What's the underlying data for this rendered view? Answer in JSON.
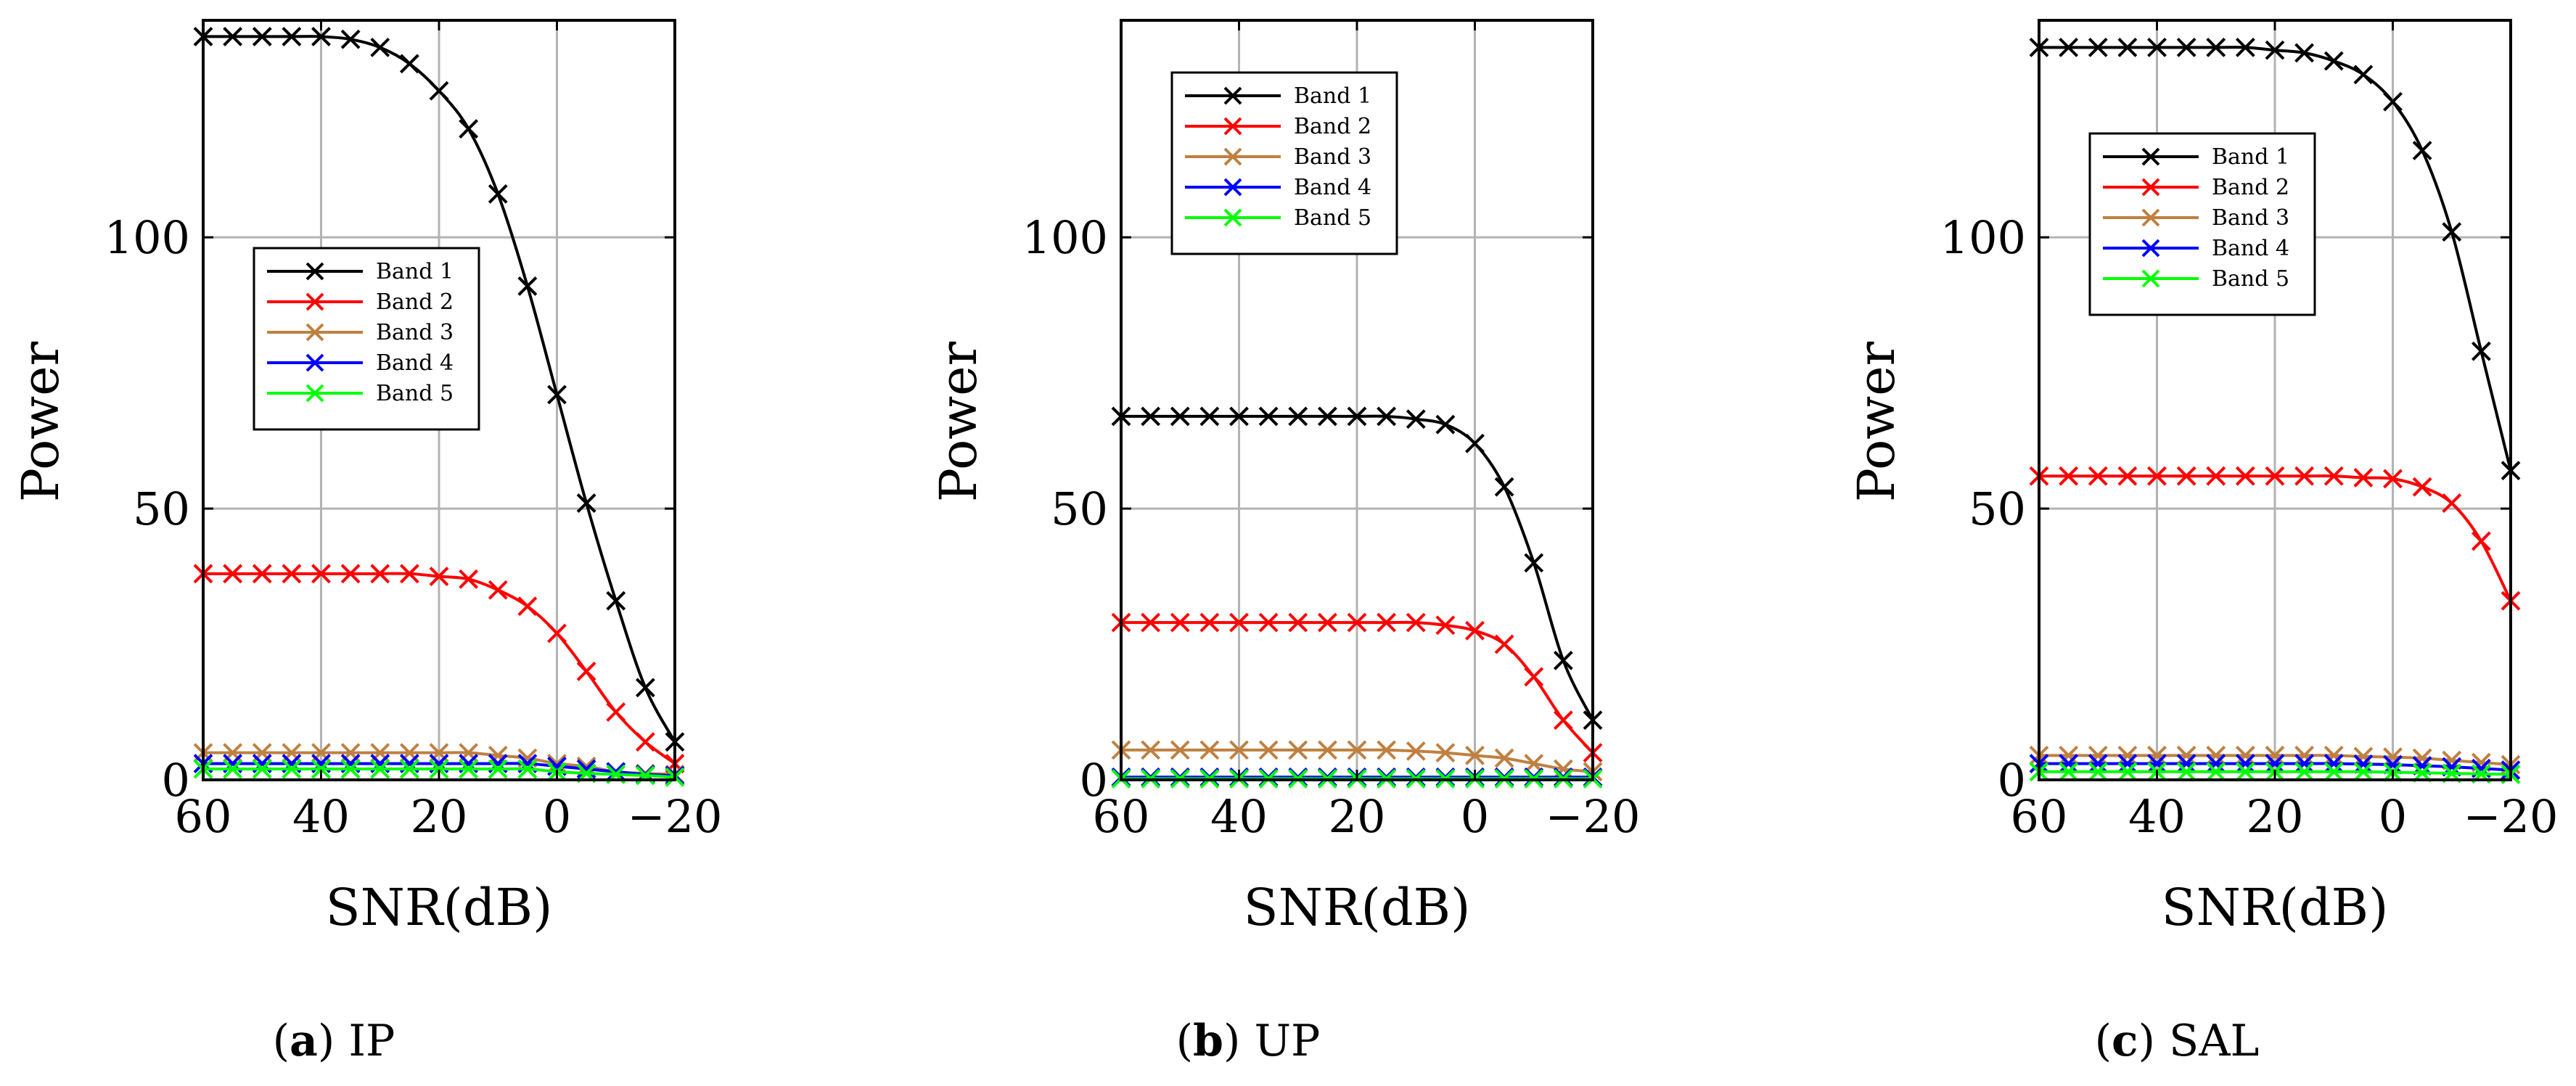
{
  "colors": {
    "band1": "#000000",
    "band2": "#ff0000",
    "band3": "#bf8040",
    "band4": "#0000ff",
    "band5": "#00ff00",
    "grid": "#b3b3b3"
  },
  "captions": [
    {
      "letter": "(a)",
      "text": "IP"
    },
    {
      "letter": "(b)",
      "text": "UP"
    },
    {
      "letter": "(c)",
      "text": "SAL"
    }
  ],
  "chart_data": [
    {
      "type": "line",
      "title": "",
      "xlabel": "SNR(dB)",
      "ylabel": "Power",
      "xlim": [
        60,
        -20
      ],
      "ylim": [
        0,
        140
      ],
      "xticks": [
        "60",
        "40",
        "20",
        "0",
        "−20"
      ],
      "yticks": [
        "0",
        "50",
        "100"
      ],
      "grid": true,
      "legend_position": "center-left",
      "x": [
        60,
        55,
        50,
        45,
        40,
        35,
        30,
        25,
        20,
        15,
        10,
        5,
        0,
        -5,
        -10,
        -15,
        -20
      ],
      "series": [
        {
          "name": "Band 1",
          "values": [
            137,
            137,
            137,
            137,
            137,
            136.5,
            135,
            132,
            127,
            120,
            108,
            91,
            71,
            51,
            33,
            17,
            7
          ]
        },
        {
          "name": "Band 2",
          "values": [
            38,
            38,
            38,
            38,
            38,
            38,
            38,
            38,
            37.5,
            37,
            35,
            32,
            27,
            20,
            12.5,
            7,
            3
          ]
        },
        {
          "name": "Band 3",
          "values": [
            5,
            5,
            5,
            5,
            5,
            5,
            5,
            5,
            5,
            5,
            4.5,
            4,
            3,
            2.5,
            1.5,
            1.2,
            1
          ]
        },
        {
          "name": "Band 4",
          "values": [
            3,
            3,
            3,
            3,
            3,
            3,
            3,
            3,
            3,
            3,
            3,
            3,
            2.5,
            2,
            1.5,
            1,
            0.8
          ]
        },
        {
          "name": "Band 5",
          "values": [
            2,
            2,
            2,
            2,
            2,
            2,
            2,
            2,
            2,
            2,
            2,
            2,
            1.5,
            1.2,
            1,
            0.8,
            0.5
          ]
        }
      ]
    },
    {
      "type": "line",
      "title": "",
      "xlabel": "SNR(dB)",
      "ylabel": "Power",
      "xlim": [
        60,
        -20
      ],
      "ylim": [
        0,
        140
      ],
      "xticks": [
        "60",
        "40",
        "20",
        "0",
        "−20"
      ],
      "yticks": [
        "0",
        "50",
        "100"
      ],
      "grid": true,
      "legend_position": "top-left",
      "x": [
        60,
        55,
        50,
        45,
        40,
        35,
        30,
        25,
        20,
        15,
        10,
        5,
        0,
        -5,
        -10,
        -15,
        -20
      ],
      "series": [
        {
          "name": "Band 1",
          "values": [
            67,
            67,
            67,
            67,
            67,
            67,
            67,
            67,
            67,
            67,
            66.5,
            65.5,
            62,
            54,
            40,
            22,
            11
          ]
        },
        {
          "name": "Band 2",
          "values": [
            29,
            29,
            29,
            29,
            29,
            29,
            29,
            29,
            29,
            29,
            29,
            28.5,
            27.5,
            25,
            19,
            11,
            5
          ]
        },
        {
          "name": "Band 3",
          "values": [
            5.5,
            5.5,
            5.5,
            5.5,
            5.5,
            5.5,
            5.5,
            5.5,
            5.5,
            5.5,
            5.3,
            5,
            4.5,
            4,
            3,
            2,
            1.5
          ]
        },
        {
          "name": "Band 4",
          "values": [
            0.5,
            0.5,
            0.5,
            0.5,
            0.5,
            0.5,
            0.5,
            0.5,
            0.5,
            0.5,
            0.5,
            0.5,
            0.5,
            0.5,
            0.5,
            0.5,
            0.5
          ]
        },
        {
          "name": "Band 5",
          "values": [
            0.2,
            0.2,
            0.2,
            0.2,
            0.2,
            0.2,
            0.2,
            0.2,
            0.2,
            0.2,
            0.2,
            0.2,
            0.2,
            0.2,
            0.2,
            0.2,
            0.2
          ]
        }
      ]
    },
    {
      "type": "line",
      "title": "",
      "xlabel": "SNR(dB)",
      "ylabel": "Power",
      "xlim": [
        60,
        -20
      ],
      "ylim": [
        0,
        140
      ],
      "xticks": [
        "60",
        "40",
        "20",
        "0",
        "−20"
      ],
      "yticks": [
        "0",
        "50",
        "100"
      ],
      "grid": true,
      "legend_position": "top-left",
      "x": [
        60,
        55,
        50,
        45,
        40,
        35,
        30,
        25,
        20,
        15,
        10,
        5,
        0,
        -5,
        -10,
        -15,
        -20
      ],
      "series": [
        {
          "name": "Band 1",
          "values": [
            135,
            135,
            135,
            135,
            135,
            135,
            135,
            135,
            134.5,
            134,
            132.5,
            130,
            125,
            116,
            101,
            79,
            57
          ]
        },
        {
          "name": "Band 2",
          "values": [
            56,
            56,
            56,
            56,
            56,
            56,
            56,
            56,
            56,
            56,
            56,
            55.7,
            55.5,
            54,
            51,
            44,
            33
          ]
        },
        {
          "name": "Band 3",
          "values": [
            4.5,
            4.5,
            4.5,
            4.5,
            4.5,
            4.5,
            4.5,
            4.5,
            4.5,
            4.5,
            4.5,
            4.3,
            4.2,
            4,
            3.6,
            3.2,
            2.8
          ]
        },
        {
          "name": "Band 4",
          "values": [
            3,
            3,
            3,
            3,
            3,
            3,
            3,
            3,
            3,
            3,
            3,
            2.9,
            2.8,
            2.6,
            2.4,
            2.1,
            1.8
          ]
        },
        {
          "name": "Band 5",
          "values": [
            1.5,
            1.5,
            1.5,
            1.5,
            1.5,
            1.5,
            1.5,
            1.5,
            1.5,
            1.5,
            1.5,
            1.5,
            1.4,
            1.3,
            1.2,
            1.1,
            1
          ]
        }
      ]
    }
  ]
}
